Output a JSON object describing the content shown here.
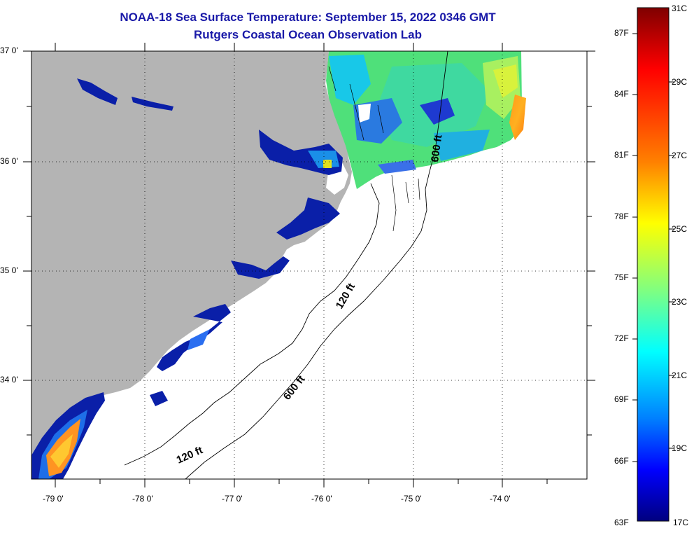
{
  "title": "NOAA-18 Sea Surface Temperature:  September 15, 2022 0346 GMT",
  "subtitle": "Rutgers Coastal Ocean Observation Lab",
  "map": {
    "lon_range": [
      -79.3,
      -73.1
    ],
    "lat_range": [
      33.1,
      37.0
    ],
    "lon_ticks": [
      {
        "label": "-79 0'"
      },
      {
        "label": "-78 0'"
      },
      {
        "label": "-77 0'"
      },
      {
        "label": "-76 0'"
      },
      {
        "label": "-75 0'"
      },
      {
        "label": "-74 0'"
      }
    ],
    "lat_ticks": [
      {
        "label": "37 0'"
      },
      {
        "label": "36 0'"
      },
      {
        "label": "35 0'"
      },
      {
        "label": "34 0'"
      }
    ],
    "contour_labels": [
      {
        "text": "600 ft",
        "id": "n"
      },
      {
        "text": "120 ft",
        "id": "m"
      },
      {
        "text": "600 ft",
        "id": "s"
      },
      {
        "text": "120 ft",
        "id": "b"
      }
    ],
    "land_color": "#b4b4b4",
    "ocean_no_data_color": "#ffffff"
  },
  "colorbar": {
    "celsius_labels": [
      "31C",
      "29C",
      "27C",
      "25C",
      "23C",
      "21C",
      "19C",
      "17C"
    ],
    "fahrenheit_labels": [
      "87F",
      "84F",
      "81F",
      "78F",
      "75F",
      "72F",
      "69F",
      "66F",
      "63F"
    ],
    "colors": [
      "#7f0000",
      "#ff0000",
      "#ff8000",
      "#ffff00",
      "#80ff80",
      "#00ffff",
      "#0080ff",
      "#0000ff",
      "#00007f"
    ]
  }
}
